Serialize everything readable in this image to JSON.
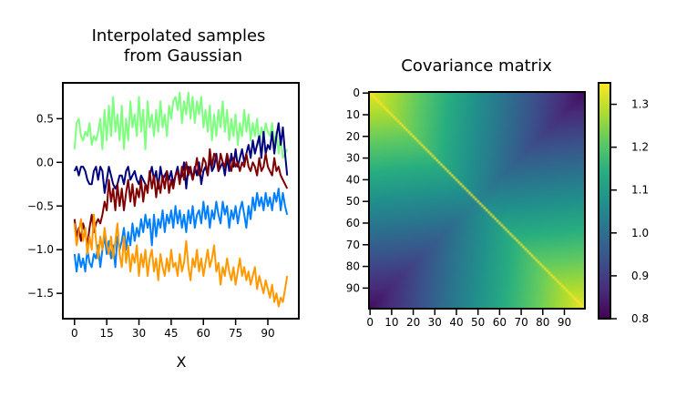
{
  "figure": {
    "left_title_line1": "Interpolated samples",
    "left_title_line2": "from Gaussian",
    "right_title": "Covariance matrix"
  },
  "chart_data": [
    {
      "type": "line",
      "title": "Interpolated samples from Gaussian",
      "xlabel": "X",
      "ylabel": "",
      "xlim": [
        -5,
        104
      ],
      "ylim": [
        -1.78,
        0.9
      ],
      "x_ticks": [
        "0",
        "15",
        "30",
        "45",
        "60",
        "75",
        "90"
      ],
      "y_ticks": [
        "0.5",
        "0.0",
        "−0.5",
        "−1.0",
        "−1.5"
      ],
      "x": "0..99 (100 points per series)",
      "series": [
        {
          "color": "#7fff7f",
          "values": [
            0.15,
            0.45,
            0.5,
            0.3,
            0.25,
            0.35,
            0.3,
            0.45,
            0.2,
            0.3,
            0.25,
            0.35,
            0.5,
            0.15,
            0.6,
            0.25,
            0.65,
            0.3,
            0.75,
            0.35,
            0.55,
            0.25,
            0.65,
            0.15,
            0.5,
            0.25,
            0.7,
            0.4,
            0.55,
            0.3,
            0.75,
            0.35,
            0.6,
            0.15,
            0.7,
            0.4,
            0.55,
            0.3,
            0.6,
            0.35,
            0.7,
            0.4,
            0.55,
            0.3,
            0.65,
            0.5,
            0.7,
            0.75,
            0.6,
            0.8,
            0.45,
            0.7,
            0.55,
            0.8,
            0.5,
            0.75,
            0.45,
            0.7,
            0.55,
            0.75,
            0.4,
            0.6,
            0.35,
            0.65,
            0.25,
            0.55,
            0.3,
            0.6,
            0.4,
            0.7,
            0.35,
            0.6,
            0.25,
            0.5,
            0.3,
            0.55,
            0.2,
            0.45,
            0.3,
            0.6,
            0.35,
            0.55,
            0.25,
            0.45,
            0.3,
            0.5,
            0.2,
            0.4,
            0.3,
            0.45,
            0.35,
            0.3,
            0.45,
            0.2,
            0.35,
            0.1,
            0.3,
            0.05,
            0.1,
            0.15
          ]
        },
        {
          "color": "#00007f",
          "values": [
            -0.1,
            -0.05,
            -0.15,
            -0.05,
            -0.05,
            -0.1,
            -0.2,
            -0.25,
            -0.25,
            -0.1,
            -0.05,
            -0.2,
            -0.05,
            -0.1,
            -0.35,
            -0.2,
            -0.05,
            -0.15,
            -0.25,
            -0.3,
            -0.25,
            -0.15,
            -0.15,
            -0.25,
            -0.1,
            -0.05,
            -0.2,
            -0.15,
            -0.1,
            -0.2,
            -0.25,
            -0.15,
            -0.2,
            -0.25,
            -0.3,
            -0.15,
            -0.05,
            -0.2,
            -0.1,
            -0.3,
            -0.05,
            -0.2,
            -0.15,
            -0.1,
            -0.2,
            -0.1,
            -0.25,
            -0.15,
            -0.05,
            -0.2,
            -0.15,
            0.0,
            -0.3,
            -0.05,
            -0.1,
            -0.2,
            -0.05,
            -0.15,
            0.0,
            -0.25,
            -0.1,
            -0.05,
            -0.15,
            0.05,
            -0.1,
            -0.05,
            0.1,
            -0.1,
            -0.05,
            0.0,
            -0.15,
            0.05,
            -0.1,
            0.1,
            -0.05,
            0.15,
            -0.05,
            0.05,
            0.15,
            0.0,
            0.1,
            0.2,
            0.05,
            0.25,
            0.1,
            0.2,
            0.3,
            0.05,
            0.35,
            0.1,
            0.2,
            0.15,
            0.35,
            0.1,
            0.3,
            0.45,
            0.2,
            0.4,
            0.1,
            -0.15
          ]
        },
        {
          "color": "#7f0000",
          "values": [
            -0.65,
            -0.85,
            -0.75,
            -0.9,
            -0.7,
            -0.8,
            -0.95,
            -0.75,
            -0.6,
            -0.8,
            -0.7,
            -0.65,
            -0.7,
            -0.6,
            -0.45,
            -0.55,
            -0.2,
            -0.45,
            -0.3,
            -0.55,
            -0.25,
            -0.5,
            -0.3,
            -0.55,
            -0.35,
            -0.2,
            -0.45,
            -0.25,
            -0.5,
            -0.3,
            -0.4,
            -0.2,
            -0.45,
            -0.25,
            -0.35,
            -0.1,
            -0.3,
            -0.15,
            -0.4,
            -0.2,
            -0.35,
            -0.15,
            -0.3,
            -0.1,
            -0.35,
            -0.2,
            -0.3,
            -0.15,
            -0.1,
            -0.25,
            -0.05,
            -0.2,
            0.0,
            -0.15,
            -0.05,
            -0.2,
            -0.1,
            0.05,
            -0.15,
            -0.1,
            0.05,
            0.0,
            -0.15,
            0.15,
            -0.05,
            0.1,
            0.05,
            -0.1,
            0.1,
            0.0,
            -0.05,
            0.1,
            0.0,
            -0.1,
            0.05,
            -0.05,
            0.0,
            -0.1,
            0.0,
            -0.05,
            0.1,
            -0.05,
            -0.1,
            0.0,
            -0.05,
            -0.15,
            0.05,
            -0.1,
            -0.05,
            0.1,
            -0.05,
            -0.1,
            -0.15,
            0.05,
            -0.1,
            -0.05,
            -0.15,
            -0.2,
            -0.25,
            -0.3
          ]
        },
        {
          "color": "#007fff",
          "values": [
            -1.05,
            -1.25,
            -1.05,
            -1.2,
            -1.1,
            -1.25,
            -1.0,
            -1.15,
            -1.2,
            -1.05,
            -1.1,
            -0.95,
            -1.2,
            -1.0,
            -0.85,
            -1.05,
            -0.9,
            -1.1,
            -0.95,
            -1.2,
            -0.85,
            -1.0,
            -0.9,
            -0.75,
            -1.0,
            -0.8,
            -0.95,
            -0.7,
            -0.9,
            -0.75,
            -0.85,
            -0.65,
            -0.8,
            -0.6,
            -0.75,
            -0.65,
            -0.95,
            -0.6,
            -0.85,
            -0.65,
            -0.75,
            -0.55,
            -0.8,
            -0.6,
            -0.7,
            -0.55,
            -0.75,
            -0.5,
            -0.7,
            -0.55,
            -0.75,
            -0.6,
            -0.8,
            -0.55,
            -0.7,
            -0.5,
            -0.75,
            -0.6,
            -0.55,
            -0.7,
            -0.45,
            -0.65,
            -0.5,
            -0.75,
            -0.55,
            -0.65,
            -0.45,
            -0.6,
            -0.7,
            -0.45,
            -0.6,
            -0.5,
            -0.75,
            -0.55,
            -0.65,
            -0.5,
            -0.7,
            -0.55,
            -0.45,
            -0.6,
            -0.75,
            -0.5,
            -0.65,
            -0.4,
            -0.55,
            -0.35,
            -0.5,
            -0.4,
            -0.55,
            -0.35,
            -0.5,
            -0.4,
            -0.55,
            -0.35,
            -0.45,
            -0.3,
            -0.55,
            -0.35,
            -0.5,
            -0.6
          ]
        },
        {
          "color": "#ff9900",
          "values": [
            -0.7,
            -0.95,
            -0.8,
            -0.65,
            -0.9,
            -0.75,
            -1.05,
            -0.85,
            -1.0,
            -0.6,
            -0.9,
            -1.1,
            -0.85,
            -1.0,
            -0.75,
            -0.95,
            -1.05,
            -0.85,
            -1.1,
            -0.9,
            -0.7,
            -1.05,
            -1.2,
            -0.85,
            -1.15,
            -0.95,
            -1.25,
            -1.05,
            -1.15,
            -0.95,
            -1.3,
            -1.05,
            -1.2,
            -1.0,
            -1.3,
            -1.1,
            -1.0,
            -1.25,
            -1.1,
            -1.35,
            -1.05,
            -1.2,
            -1.3,
            -1.1,
            -1.25,
            -1.0,
            -1.2,
            -1.15,
            -1.3,
            -1.05,
            -1.25,
            -1.15,
            -0.9,
            -1.2,
            -1.35,
            -1.1,
            -1.2,
            -1.0,
            -1.25,
            -1.1,
            -1.3,
            -1.15,
            -1.0,
            -1.2,
            -1.1,
            -0.95,
            -1.25,
            -1.15,
            -1.4,
            -1.2,
            -1.3,
            -1.1,
            -1.25,
            -1.35,
            -1.2,
            -1.4,
            -1.25,
            -1.1,
            -1.3,
            -1.2,
            -1.35,
            -1.25,
            -1.4,
            -1.3,
            -1.2,
            -1.45,
            -1.3,
            -1.4,
            -1.5,
            -1.35,
            -1.45,
            -1.55,
            -1.4,
            -1.6,
            -1.5,
            -1.65,
            -1.55,
            -1.6,
            -1.45,
            -1.3
          ]
        }
      ]
    },
    {
      "type": "heatmap",
      "title": "Covariance matrix",
      "size": 100,
      "x_ticks": [
        "0",
        "10",
        "20",
        "30",
        "40",
        "50",
        "60",
        "70",
        "80",
        "90"
      ],
      "y_ticks": [
        "0",
        "10",
        "20",
        "30",
        "40",
        "50",
        "60",
        "70",
        "80",
        "90"
      ],
      "colormap": "viridis",
      "vmin": 0.8,
      "vmax": 1.35,
      "corner_values": {
        "top_left": 1.33,
        "top_right": 0.82,
        "bottom_left": 0.82,
        "bottom_right": 1.33,
        "center": 1.05
      },
      "diagonal_value": 1.35,
      "colorbar_ticks": [
        "0.8",
        "0.9",
        "1.0",
        "1.1",
        "1.2",
        "1.3"
      ],
      "colorbar_values": [
        0.8,
        0.9,
        1.0,
        1.1,
        1.2,
        1.3
      ]
    }
  ]
}
